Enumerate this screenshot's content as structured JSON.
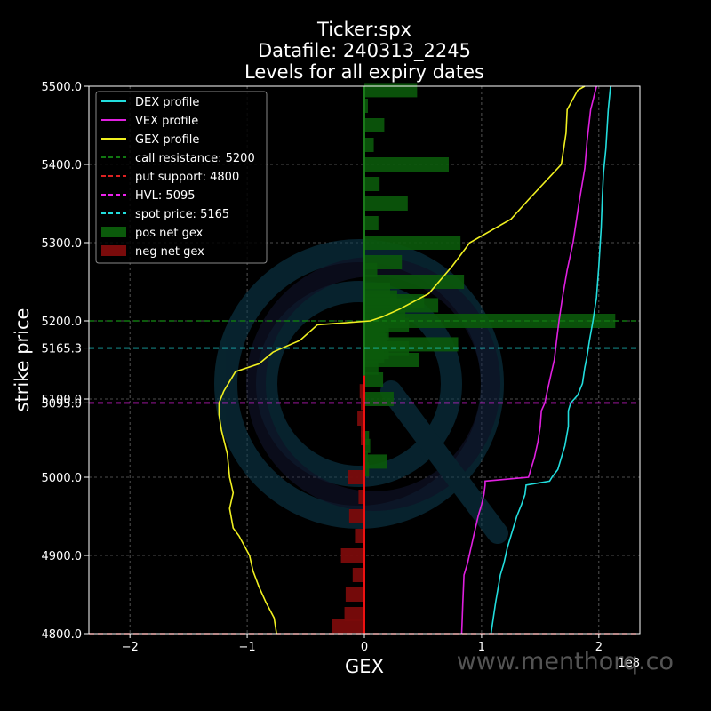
{
  "chart_data": {
    "type": "bar",
    "title_lines": [
      "Ticker:spx",
      "Datafile: 240313_2245",
      "Levels for all expiry dates"
    ],
    "xlabel": "GEX",
    "ylabel": "strike price",
    "x_scale_label": "1e8",
    "watermark": "www.menthorq.co",
    "xlim": [
      -2.35,
      2.35
    ],
    "ylim": [
      4800,
      5500
    ],
    "x_ticks": [
      -2,
      -1,
      0,
      1,
      2
    ],
    "x_tick_labels": [
      "−2",
      "−1",
      "0",
      "1",
      "2"
    ],
    "y_ticks": [
      4800,
      4900,
      5000,
      5095,
      5100,
      5165.3,
      5200,
      5300,
      5400,
      5500
    ],
    "y_tick_labels": [
      "4800.0",
      "4900.0",
      "5000.0",
      "5095.0",
      "5100.0",
      "5165.3",
      "5200.0",
      "5300.0",
      "5400.0",
      "5500.0"
    ],
    "grid": true,
    "legend_position": "top-left",
    "colors": {
      "background": "#000000",
      "dex": "#22dddd",
      "vex": "#e020e0",
      "gex": "#f0f020",
      "call_resistance": "#117711",
      "put_support": "#dd2222",
      "hvl": "#ee22ee",
      "spot": "#22dddd",
      "pos_bar": "#0b5a0b",
      "neg_bar": "#7a0b0b"
    },
    "legend": [
      {
        "label": "DEX profile",
        "style": "line",
        "color": "#22dddd"
      },
      {
        "label": "VEX profile",
        "style": "line",
        "color": "#e020e0"
      },
      {
        "label": "GEX profile",
        "style": "line",
        "color": "#f0f020"
      },
      {
        "label": "call resistance: 5200",
        "style": "dash",
        "color": "#117711"
      },
      {
        "label": "put support: 4800",
        "style": "dash",
        "color": "#dd2222"
      },
      {
        "label": "HVL: 5095",
        "style": "dash",
        "color": "#ee22ee"
      },
      {
        "label": "spot price: 5165",
        "style": "dash",
        "color": "#22dddd"
      },
      {
        "label": "pos net gex",
        "style": "patch",
        "color": "#0b5a0b"
      },
      {
        "label": "neg net gex",
        "style": "patch",
        "color": "#7a0b0b"
      }
    ],
    "levels": {
      "call_resistance": 5200,
      "put_support": 4800,
      "hvl": 5095,
      "spot": 5165.3
    },
    "bar_height": 8,
    "pos_bars": [
      {
        "strike": 5495,
        "value": 0.45
      },
      {
        "strike": 5475,
        "value": 0.03
      },
      {
        "strike": 5450,
        "value": 0.17
      },
      {
        "strike": 5425,
        "value": 0.08
      },
      {
        "strike": 5400,
        "value": 0.72
      },
      {
        "strike": 5375,
        "value": 0.13
      },
      {
        "strike": 5350,
        "value": 0.37
      },
      {
        "strike": 5325,
        "value": 0.12
      },
      {
        "strike": 5300,
        "value": 0.82
      },
      {
        "strike": 5275,
        "value": 0.32
      },
      {
        "strike": 5265,
        "value": 0.11
      },
      {
        "strike": 5250,
        "value": 0.85
      },
      {
        "strike": 5240,
        "value": 0.22
      },
      {
        "strike": 5230,
        "value": 0.28
      },
      {
        "strike": 5225,
        "value": 0.51
      },
      {
        "strike": 5220,
        "value": 0.63
      },
      {
        "strike": 5210,
        "value": 0.28
      },
      {
        "strike": 5205,
        "value": 0.35
      },
      {
        "strike": 5200,
        "value": 2.14
      },
      {
        "strike": 5195,
        "value": 0.38
      },
      {
        "strike": 5190,
        "value": 0.18
      },
      {
        "strike": 5185,
        "value": 0.21
      },
      {
        "strike": 5180,
        "value": 0.13
      },
      {
        "strike": 5175,
        "value": 0.19
      },
      {
        "strike": 5170,
        "value": 0.8
      },
      {
        "strike": 5165,
        "value": 0.38
      },
      {
        "strike": 5160,
        "value": 0.21
      },
      {
        "strike": 5155,
        "value": 0.17
      },
      {
        "strike": 5150,
        "value": 0.47
      },
      {
        "strike": 5140,
        "value": 0.12
      },
      {
        "strike": 5125,
        "value": 0.16
      },
      {
        "strike": 5100,
        "value": 0.25
      },
      {
        "strike": 5050,
        "value": 0.04
      },
      {
        "strike": 5040,
        "value": 0.05
      },
      {
        "strike": 5025,
        "value": 0.03
      },
      {
        "strike": 5020,
        "value": 0.19
      },
      {
        "strike": 5010,
        "value": 0.04
      }
    ],
    "neg_bars": [
      {
        "strike": 5110,
        "value": -0.04
      },
      {
        "strike": 5095,
        "value": -0.03
      },
      {
        "strike": 5075,
        "value": -0.06
      },
      {
        "strike": 5060,
        "value": -0.03
      },
      {
        "strike": 5050,
        "value": -0.03
      },
      {
        "strike": 5000,
        "value": -0.14
      },
      {
        "strike": 4975,
        "value": -0.05
      },
      {
        "strike": 4950,
        "value": -0.13
      },
      {
        "strike": 4925,
        "value": -0.08
      },
      {
        "strike": 4900,
        "value": -0.2
      },
      {
        "strike": 4875,
        "value": -0.1
      },
      {
        "strike": 4850,
        "value": -0.16
      },
      {
        "strike": 4825,
        "value": -0.17
      },
      {
        "strike": 4810,
        "value": -0.28
      }
    ],
    "series": [
      {
        "name": "DEX profile",
        "color": "#22dddd",
        "points": [
          [
            1.08,
            4800
          ],
          [
            1.12,
            4840
          ],
          [
            1.16,
            4875
          ],
          [
            1.19,
            4890
          ],
          [
            1.22,
            4910
          ],
          [
            1.26,
            4930
          ],
          [
            1.3,
            4950
          ],
          [
            1.34,
            4965
          ],
          [
            1.37,
            4978
          ],
          [
            1.38,
            4990
          ],
          [
            1.58,
            4995
          ],
          [
            1.6,
            5000
          ],
          [
            1.65,
            5010
          ],
          [
            1.68,
            5025
          ],
          [
            1.71,
            5040
          ],
          [
            1.74,
            5065
          ],
          [
            1.74,
            5085
          ],
          [
            1.76,
            5095
          ],
          [
            1.82,
            5105
          ],
          [
            1.86,
            5120
          ],
          [
            1.88,
            5140
          ],
          [
            1.9,
            5155
          ],
          [
            1.92,
            5175
          ],
          [
            1.95,
            5200
          ],
          [
            1.98,
            5230
          ],
          [
            2.0,
            5270
          ],
          [
            2.02,
            5320
          ],
          [
            2.03,
            5360
          ],
          [
            2.04,
            5390
          ],
          [
            2.06,
            5420
          ],
          [
            2.08,
            5470
          ],
          [
            2.1,
            5500
          ]
        ]
      },
      {
        "name": "VEX profile",
        "color": "#e020e0",
        "points": [
          [
            0.83,
            4800
          ],
          [
            0.84,
            4840
          ],
          [
            0.85,
            4875
          ],
          [
            0.88,
            4890
          ],
          [
            0.91,
            4910
          ],
          [
            0.94,
            4930
          ],
          [
            0.97,
            4950
          ],
          [
            1.0,
            4965
          ],
          [
            1.02,
            4978
          ],
          [
            1.03,
            4990
          ],
          [
            1.03,
            4995
          ],
          [
            1.4,
            5000
          ],
          [
            1.42,
            5010
          ],
          [
            1.45,
            5025
          ],
          [
            1.48,
            5045
          ],
          [
            1.5,
            5065
          ],
          [
            1.51,
            5085
          ],
          [
            1.54,
            5095
          ],
          [
            1.56,
            5110
          ],
          [
            1.59,
            5130
          ],
          [
            1.62,
            5150
          ],
          [
            1.64,
            5175
          ],
          [
            1.66,
            5200
          ],
          [
            1.69,
            5230
          ],
          [
            1.73,
            5265
          ],
          [
            1.78,
            5300
          ],
          [
            1.83,
            5350
          ],
          [
            1.88,
            5395
          ],
          [
            1.9,
            5430
          ],
          [
            1.93,
            5470
          ],
          [
            1.98,
            5500
          ]
        ]
      },
      {
        "name": "GEX profile",
        "color": "#f0f020",
        "points": [
          [
            -0.75,
            4800
          ],
          [
            -0.77,
            4820
          ],
          [
            -0.84,
            4840
          ],
          [
            -0.9,
            4860
          ],
          [
            -0.95,
            4880
          ],
          [
            -0.98,
            4900
          ],
          [
            -1.07,
            4925
          ],
          [
            -1.12,
            4935
          ],
          [
            -1.15,
            4960
          ],
          [
            -1.12,
            4980
          ],
          [
            -1.15,
            5000
          ],
          [
            -1.17,
            5030
          ],
          [
            -1.22,
            5060
          ],
          [
            -1.24,
            5080
          ],
          [
            -1.24,
            5095
          ],
          [
            -1.2,
            5110
          ],
          [
            -1.16,
            5120
          ],
          [
            -1.1,
            5135
          ],
          [
            -0.9,
            5145
          ],
          [
            -0.78,
            5160
          ],
          [
            -0.55,
            5175
          ],
          [
            -0.4,
            5195
          ],
          [
            0.05,
            5200
          ],
          [
            0.15,
            5205
          ],
          [
            0.3,
            5215
          ],
          [
            0.55,
            5235
          ],
          [
            0.75,
            5270
          ],
          [
            0.9,
            5300
          ],
          [
            1.25,
            5330
          ],
          [
            1.4,
            5355
          ],
          [
            1.68,
            5400
          ],
          [
            1.72,
            5440
          ],
          [
            1.73,
            5470
          ],
          [
            1.82,
            5495
          ],
          [
            1.88,
            5500
          ]
        ]
      }
    ]
  }
}
